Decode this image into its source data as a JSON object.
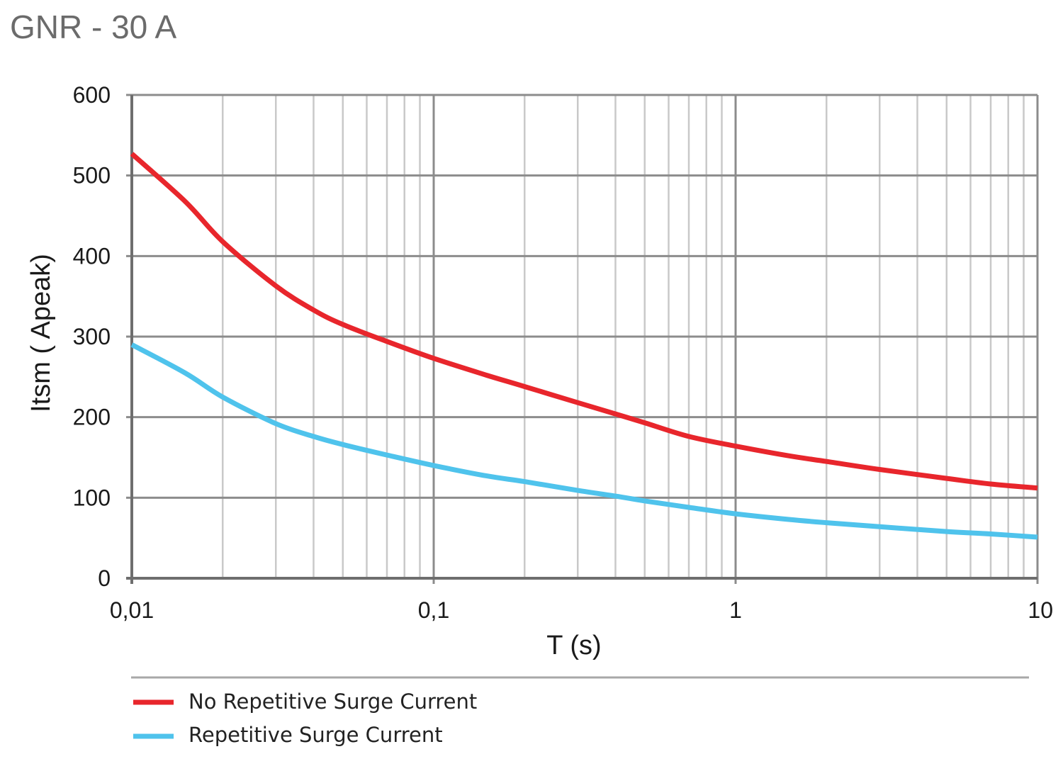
{
  "chart_data": {
    "type": "line",
    "title": "GNR - 30 A",
    "xlabel": "T (s)",
    "ylabel": "Itsm ( Apeak)",
    "x_scale": "log",
    "xlim": [
      0.01,
      10
    ],
    "ylim": [
      0,
      600
    ],
    "x_ticks": [
      {
        "value": 0.01,
        "label": "0,01"
      },
      {
        "value": 0.1,
        "label": "0,1"
      },
      {
        "value": 1,
        "label": "1"
      },
      {
        "value": 10,
        "label": "10"
      }
    ],
    "y_ticks": [
      {
        "value": 0,
        "label": "0"
      },
      {
        "value": 100,
        "label": "100"
      },
      {
        "value": 200,
        "label": "200"
      },
      {
        "value": 300,
        "label": "300"
      },
      {
        "value": 400,
        "label": "400"
      },
      {
        "value": 500,
        "label": "500"
      },
      {
        "value": 600,
        "label": "600"
      }
    ],
    "grid": true,
    "legend_position": "bottom",
    "series": [
      {
        "name": "No Repetitive Surge Current",
        "color": "#e8262c",
        "x": [
          0.01,
          0.015,
          0.02,
          0.03,
          0.04,
          0.05,
          0.07,
          0.1,
          0.15,
          0.2,
          0.3,
          0.4,
          0.5,
          0.7,
          1,
          1.5,
          2,
          3,
          5,
          7,
          10
        ],
        "y": [
          527,
          468,
          418,
          363,
          333,
          315,
          294,
          273,
          252,
          238,
          218,
          204,
          193,
          176,
          164,
          152,
          145,
          135,
          124,
          117,
          112
        ]
      },
      {
        "name": "Repetitive Surge Current",
        "color": "#4fc3ec",
        "x": [
          0.01,
          0.015,
          0.02,
          0.03,
          0.04,
          0.05,
          0.07,
          0.1,
          0.15,
          0.2,
          0.3,
          0.4,
          0.5,
          0.7,
          1,
          1.5,
          2,
          3,
          5,
          7,
          10
        ],
        "y": [
          290,
          255,
          225,
          192,
          176,
          166,
          153,
          140,
          127,
          120,
          109,
          102,
          96,
          88,
          80,
          73,
          69,
          64,
          58,
          55,
          51
        ]
      }
    ]
  }
}
